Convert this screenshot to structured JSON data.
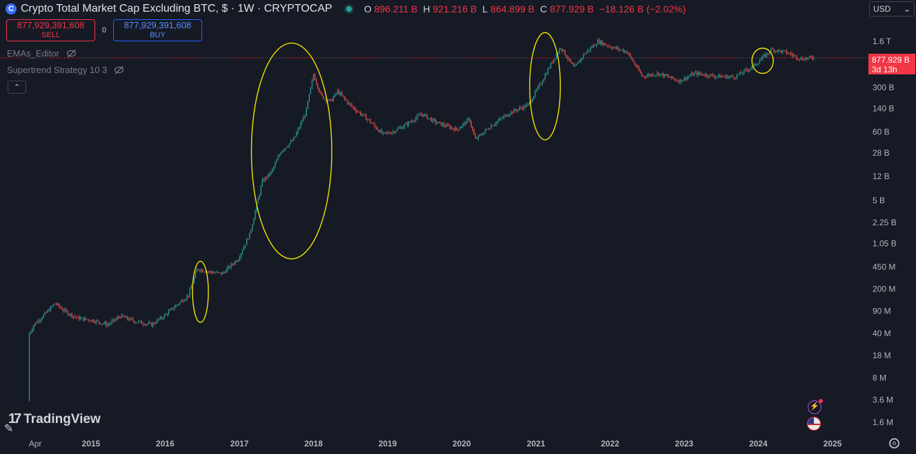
{
  "header": {
    "symbol_icon": "coin-icon",
    "symbol_icon_glyph": "C",
    "title": "Crypto Total Market Cap Excluding BTC, $ · 1W · CRYPTOCAP",
    "ohlc": {
      "o_key": "O",
      "o": "896.211 B",
      "h_key": "H",
      "h": "921.216 B",
      "l_key": "L",
      "l": "864.899 B",
      "c_key": "C",
      "c": "877.929 B",
      "change": "−18.126 B (−2.02%)"
    }
  },
  "trade": {
    "sell_price": "877,929,391,608",
    "sell_label": "SELL",
    "spread": "0",
    "buy_price": "877,929,391,608",
    "buy_label": "BUY"
  },
  "indicators": [
    {
      "label": "EMAs_Editor",
      "icon": "eye-off-icon"
    },
    {
      "label": "Supertrend Strategy 10 3",
      "icon": "eye-off-icon"
    }
  ],
  "collapse_glyph": "⌃",
  "currency": {
    "label": "USD",
    "glyph": "⌄"
  },
  "price_tag": {
    "price": "877.929 B",
    "countdown": "3d 13h"
  },
  "logo": {
    "mark": "17",
    "text": "TradingView"
  },
  "bolt_glyph": "⚡",
  "pencil_glyph": "✎",
  "colors": {
    "background": "#161a25",
    "up": "#26a69a",
    "down": "#ef5350",
    "highlight": "#f2e600",
    "price_line": "#f23645"
  },
  "chart_data": {
    "type": "candlestick",
    "title": "Crypto Total Market Cap Excluding BTC, $ · 1W · CRYPTOCAP",
    "y_scale": "log",
    "y_ticks": [
      {
        "value": 1600000000000,
        "label": "1.6 T"
      },
      {
        "value": 300000000000,
        "label": "300 B"
      },
      {
        "value": 140000000000,
        "label": "140 B"
      },
      {
        "value": 60000000000,
        "label": "60 B"
      },
      {
        "value": 28000000000,
        "label": "28 B"
      },
      {
        "value": 12000000000,
        "label": "12 B"
      },
      {
        "value": 5000000000,
        "label": "5 B"
      },
      {
        "value": 2250000000,
        "label": "2.25 B"
      },
      {
        "value": 1050000000,
        "label": "1.05 B"
      },
      {
        "value": 450000000,
        "label": "450 M"
      },
      {
        "value": 200000000,
        "label": "200 M"
      },
      {
        "value": 90000000,
        "label": "90 M"
      },
      {
        "value": 40000000,
        "label": "40 M"
      },
      {
        "value": 18000000,
        "label": "18 M"
      },
      {
        "value": 8000000,
        "label": "8 M"
      },
      {
        "value": 3600000,
        "label": "3.6 M"
      },
      {
        "value": 1600000,
        "label": "1.6 M"
      }
    ],
    "x_ticks": [
      {
        "date": "2014-04-01",
        "label": "Apr"
      },
      {
        "date": "2015-01-01",
        "label": "2015"
      },
      {
        "date": "2016-01-01",
        "label": "2016"
      },
      {
        "date": "2017-01-01",
        "label": "2017"
      },
      {
        "date": "2018-01-01",
        "label": "2018"
      },
      {
        "date": "2019-01-01",
        "label": "2019"
      },
      {
        "date": "2020-01-01",
        "label": "2020"
      },
      {
        "date": "2021-01-01",
        "label": "2021"
      },
      {
        "date": "2022-01-01",
        "label": "2022"
      },
      {
        "date": "2023-01-01",
        "label": "2023"
      },
      {
        "date": "2024-01-01",
        "label": "2024"
      },
      {
        "date": "2025-01-01",
        "label": "2025"
      }
    ],
    "last_close": 877929391608,
    "price_series": [
      {
        "date": "2014-03-03",
        "value": 3500000
      },
      {
        "date": "2014-03-10",
        "value": 40000000
      },
      {
        "date": "2014-04-01",
        "value": 55000000
      },
      {
        "date": "2014-06-01",
        "value": 85000000
      },
      {
        "date": "2014-07-15",
        "value": 120000000
      },
      {
        "date": "2014-09-01",
        "value": 90000000
      },
      {
        "date": "2014-11-01",
        "value": 70000000
      },
      {
        "date": "2015-01-15",
        "value": 65000000
      },
      {
        "date": "2015-04-01",
        "value": 55000000
      },
      {
        "date": "2015-06-01",
        "value": 75000000
      },
      {
        "date": "2015-08-15",
        "value": 62000000
      },
      {
        "date": "2015-11-01",
        "value": 55000000
      },
      {
        "date": "2016-01-01",
        "value": 75000000
      },
      {
        "date": "2016-03-15",
        "value": 120000000
      },
      {
        "date": "2016-05-01",
        "value": 160000000
      },
      {
        "date": "2016-06-15",
        "value": 420000000
      },
      {
        "date": "2016-08-01",
        "value": 380000000
      },
      {
        "date": "2016-10-15",
        "value": 350000000
      },
      {
        "date": "2017-01-01",
        "value": 600000000
      },
      {
        "date": "2017-03-01",
        "value": 1500000000
      },
      {
        "date": "2017-05-01",
        "value": 10000000000
      },
      {
        "date": "2017-06-15",
        "value": 14000000000
      },
      {
        "date": "2017-08-01",
        "value": 30000000000
      },
      {
        "date": "2017-10-01",
        "value": 45000000000
      },
      {
        "date": "2017-12-01",
        "value": 120000000000
      },
      {
        "date": "2018-01-08",
        "value": 480000000000
      },
      {
        "date": "2018-02-15",
        "value": 220000000000
      },
      {
        "date": "2018-04-01",
        "value": 180000000000
      },
      {
        "date": "2018-05-07",
        "value": 260000000000
      },
      {
        "date": "2018-07-15",
        "value": 150000000000
      },
      {
        "date": "2018-10-01",
        "value": 95000000000
      },
      {
        "date": "2018-12-15",
        "value": 55000000000
      },
      {
        "date": "2019-02-01",
        "value": 60000000000
      },
      {
        "date": "2019-04-15",
        "value": 80000000000
      },
      {
        "date": "2019-06-25",
        "value": 115000000000
      },
      {
        "date": "2019-09-01",
        "value": 85000000000
      },
      {
        "date": "2019-12-15",
        "value": 65000000000
      },
      {
        "date": "2020-02-15",
        "value": 95000000000
      },
      {
        "date": "2020-03-15",
        "value": 45000000000
      },
      {
        "date": "2020-06-01",
        "value": 75000000000
      },
      {
        "date": "2020-09-01",
        "value": 120000000000
      },
      {
        "date": "2020-12-01",
        "value": 160000000000
      },
      {
        "date": "2021-02-01",
        "value": 350000000000
      },
      {
        "date": "2021-04-01",
        "value": 800000000000
      },
      {
        "date": "2021-05-10",
        "value": 1300000000000
      },
      {
        "date": "2021-07-15",
        "value": 600000000000
      },
      {
        "date": "2021-09-01",
        "value": 1000000000000
      },
      {
        "date": "2021-11-10",
        "value": 1600000000000
      },
      {
        "date": "2022-01-15",
        "value": 1300000000000
      },
      {
        "date": "2022-04-01",
        "value": 1100000000000
      },
      {
        "date": "2022-06-15",
        "value": 450000000000
      },
      {
        "date": "2022-09-01",
        "value": 500000000000
      },
      {
        "date": "2022-12-15",
        "value": 380000000000
      },
      {
        "date": "2023-03-01",
        "value": 500000000000
      },
      {
        "date": "2023-06-15",
        "value": 450000000000
      },
      {
        "date": "2023-09-15",
        "value": 440000000000
      },
      {
        "date": "2023-12-15",
        "value": 650000000000
      },
      {
        "date": "2024-03-15",
        "value": 1200000000000
      },
      {
        "date": "2024-06-01",
        "value": 1050000000000
      },
      {
        "date": "2024-08-05",
        "value": 850000000000
      },
      {
        "date": "2024-09-30",
        "value": 877929391608
      }
    ],
    "annotations": [
      {
        "type": "ellipse",
        "start": "2016-05-15",
        "end": "2016-08-01",
        "low": 60000000,
        "high": 550000000
      },
      {
        "type": "ellipse",
        "start": "2017-03-01",
        "end": "2018-04-01",
        "low": 600000000,
        "high": 1500000000000
      },
      {
        "type": "ellipse",
        "start": "2020-12-01",
        "end": "2021-05-01",
        "low": 45000000000,
        "high": 2200000000000
      },
      {
        "type": "ellipse",
        "start": "2023-12-01",
        "end": "2024-03-15",
        "low": 500000000000,
        "high": 1250000000000
      }
    ]
  }
}
